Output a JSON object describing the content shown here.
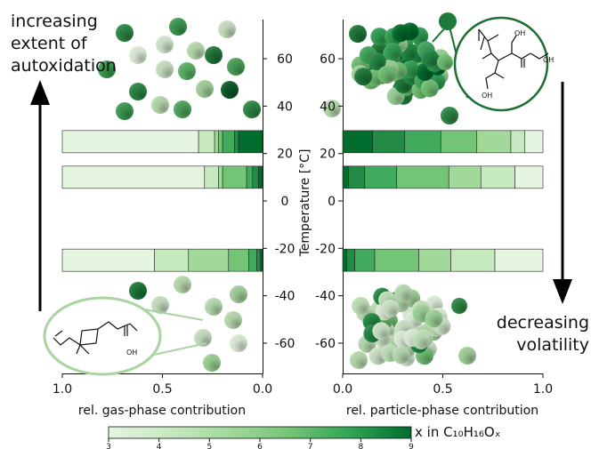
{
  "annotations": {
    "top_left": [
      "increasing",
      "extent of",
      "autoxidation"
    ],
    "bottom_right": [
      "decreasing",
      "volatility"
    ]
  },
  "molecule_labels": {
    "top_oh_1": "OH",
    "top_oh_2": "OH",
    "top_oh_3": "OH",
    "bottom_oh": "OH"
  },
  "colorbar": {
    "label": "x in C₁₀H₁₆Oₓ",
    "ticks": [
      "3",
      "4",
      "5",
      "6",
      "7",
      "8",
      "9"
    ],
    "min": 3,
    "max": 9
  },
  "chart_data": [
    {
      "type": "bar",
      "orientation": "horizontal-stacked",
      "xlabel": "rel. gas-phase contribution",
      "ylabel": "",
      "xlim": [
        1.0,
        0.0
      ],
      "xticks": [
        "1.0",
        "0.5",
        "0.0"
      ],
      "ylim": [
        -75,
        75
      ],
      "yticks": [
        "60",
        "40",
        "20",
        "0",
        "-20",
        "-40",
        "-60"
      ],
      "bars": [
        {
          "temperature": 25,
          "segments": [
            {
              "x": 3,
              "value": 0.68
            },
            {
              "x": 4,
              "value": 0.08
            },
            {
              "x": 5,
              "value": 0.02
            },
            {
              "x": 6,
              "value": 0.02
            },
            {
              "x": 7,
              "value": 0.06
            },
            {
              "x": 8,
              "value": 0.02
            },
            {
              "x": 9,
              "value": 0.12
            }
          ]
        },
        {
          "temperature": 10,
          "segments": [
            {
              "x": 3,
              "value": 0.71
            },
            {
              "x": 4,
              "value": 0.07
            },
            {
              "x": 5,
              "value": 0.02
            },
            {
              "x": 6,
              "value": 0.12
            },
            {
              "x": 7,
              "value": 0.03
            },
            {
              "x": 8,
              "value": 0.03
            },
            {
              "x": 9,
              "value": 0.02
            }
          ]
        },
        {
          "temperature": -25,
          "segments": [
            {
              "x": 3,
              "value": 0.46
            },
            {
              "x": 4,
              "value": 0.17
            },
            {
              "x": 5,
              "value": 0.2
            },
            {
              "x": 6,
              "value": 0.1
            },
            {
              "x": 7,
              "value": 0.04
            },
            {
              "x": 8,
              "value": 0.02
            },
            {
              "x": 9,
              "value": 0.01
            }
          ]
        }
      ]
    },
    {
      "type": "bar",
      "orientation": "horizontal-stacked",
      "xlabel": "rel. particle-phase contribution",
      "ylabel": "Temperature [°C]",
      "xlim": [
        0.0,
        1.0
      ],
      "xticks": [
        "0.0",
        "0.5",
        "1.0"
      ],
      "ylim": [
        -75,
        75
      ],
      "yticks": [
        "60",
        "40",
        "20",
        "0",
        "-20",
        "-40",
        "-60"
      ],
      "bars": [
        {
          "temperature": 25,
          "segments": [
            {
              "x": 9,
              "value": 0.15
            },
            {
              "x": 8,
              "value": 0.16
            },
            {
              "x": 7,
              "value": 0.18
            },
            {
              "x": 6,
              "value": 0.18
            },
            {
              "x": 5,
              "value": 0.17
            },
            {
              "x": 4,
              "value": 0.07
            },
            {
              "x": 3,
              "value": 0.09
            }
          ]
        },
        {
          "temperature": 10,
          "segments": [
            {
              "x": 9,
              "value": 0.03
            },
            {
              "x": 8,
              "value": 0.08
            },
            {
              "x": 7,
              "value": 0.16
            },
            {
              "x": 6,
              "value": 0.26
            },
            {
              "x": 5,
              "value": 0.16
            },
            {
              "x": 4,
              "value": 0.17
            },
            {
              "x": 3,
              "value": 0.14
            }
          ]
        },
        {
          "temperature": -25,
          "segments": [
            {
              "x": 9,
              "value": 0.02
            },
            {
              "x": 8,
              "value": 0.04
            },
            {
              "x": 7,
              "value": 0.1
            },
            {
              "x": 6,
              "value": 0.22
            },
            {
              "x": 5,
              "value": 0.16
            },
            {
              "x": 4,
              "value": 0.22
            },
            {
              "x": 3,
              "value": 0.24
            }
          ]
        }
      ]
    }
  ]
}
